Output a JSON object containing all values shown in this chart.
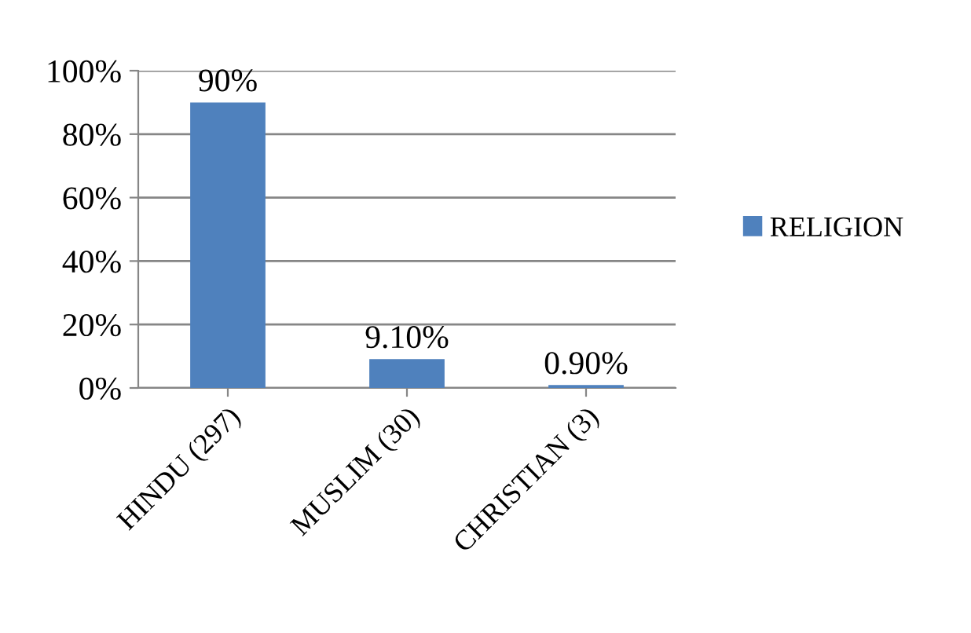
{
  "chart_data": {
    "type": "bar",
    "categories": [
      "HINDU (297)",
      "MUSLIM (30)",
      "CHRISTIAN (3)"
    ],
    "series": [
      {
        "name": "RELIGION",
        "color": "#4f81bd",
        "values": [
          90,
          9.1,
          0.9
        ],
        "value_labels": [
          "90%",
          "9.10%",
          "0.90%"
        ]
      }
    ],
    "ylim": [
      0,
      100
    ],
    "yticks": [
      {
        "value": 0,
        "label": "0%"
      },
      {
        "value": 20,
        "label": "20%"
      },
      {
        "value": 40,
        "label": "40%"
      },
      {
        "value": 60,
        "label": "60%"
      },
      {
        "value": 80,
        "label": "80%"
      },
      {
        "value": 100,
        "label": "100%"
      }
    ],
    "grid": "y",
    "legend": "right"
  }
}
